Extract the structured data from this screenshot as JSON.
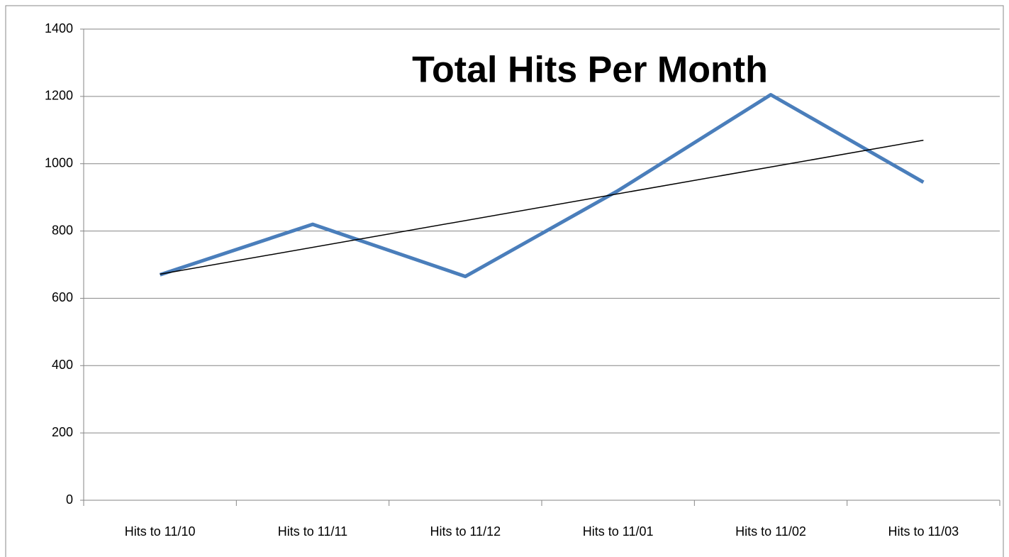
{
  "chart_data": {
    "type": "line",
    "title": "Total Hits Per Month",
    "categories": [
      "Hits to 11/10",
      "Hits to 11/11",
      "Hits to 11/12",
      "Hits to 11/01",
      "Hits to 11/02",
      "Hits to 11/03"
    ],
    "series": [
      {
        "name": "Total Hits",
        "color": "#4a7ebb",
        "values": [
          670,
          820,
          665,
          920,
          1205,
          945
        ]
      }
    ],
    "ylim": [
      0,
      1400
    ],
    "yticks": [
      0,
      200,
      400,
      600,
      800,
      1000,
      1200,
      1400
    ],
    "grid": true,
    "legend": false,
    "trendline": "linear",
    "trendline_color": "#000000"
  }
}
